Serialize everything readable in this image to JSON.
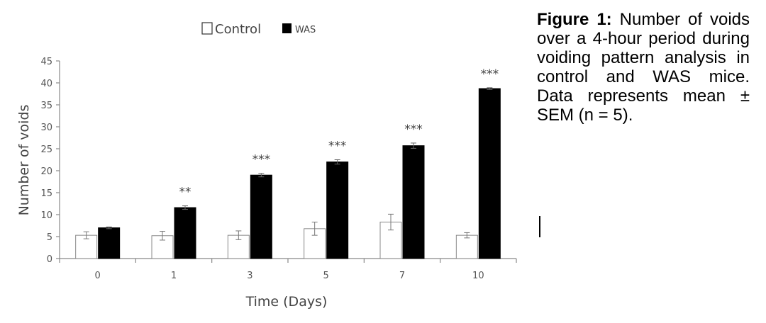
{
  "chart_data": {
    "type": "bar",
    "categories": [
      "0",
      "1",
      "3",
      "5",
      "7",
      "10"
    ],
    "series": [
      {
        "name": "Control",
        "color": "#ffffff",
        "values": [
          5.3,
          5.2,
          5.3,
          6.8,
          8.3,
          5.3
        ],
        "errors": [
          0.8,
          1.0,
          1.0,
          1.5,
          1.8,
          0.6
        ]
      },
      {
        "name": "WAS",
        "color": "#000000",
        "values": [
          7.0,
          11.6,
          19.0,
          22.0,
          25.7,
          38.7
        ],
        "errors": [
          0.2,
          0.4,
          0.4,
          0.5,
          0.6,
          0.2
        ]
      }
    ],
    "significance": [
      "",
      "**",
      "***",
      "***",
      "***",
      "***"
    ],
    "xlabel": "Time (Days)",
    "ylabel": "Number of voids",
    "ylim": [
      0,
      45
    ],
    "yticks": [
      "0",
      "5",
      "10",
      "15",
      "20",
      "25",
      "30",
      "35",
      "40",
      "45"
    ],
    "legend": "top"
  },
  "caption": {
    "label": "Figure 1:",
    "text": "Number of voids over a 4-hour period during voiding pattern analysis in control and WAS mice. Data represents mean ± SEM (n = 5)."
  }
}
